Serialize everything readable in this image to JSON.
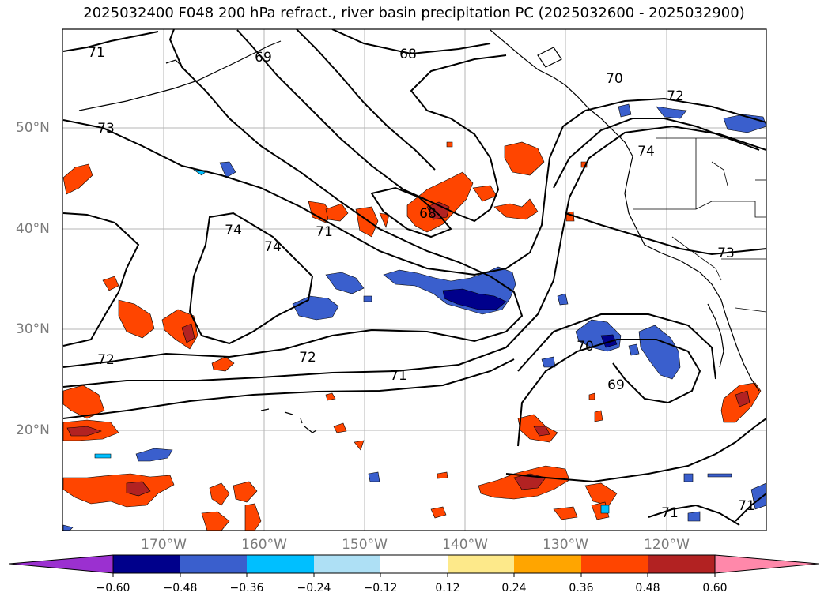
{
  "title": "2025032400 F048 200 hPa refract., river basin precipitation PC (2025032600 - 2025032900)",
  "lat_labels": [
    "50°N",
    "40°N",
    "30°N",
    "20°N"
  ],
  "lon_labels": [
    "170°W",
    "160°W",
    "150°W",
    "140°W",
    "130°W",
    "120°W"
  ],
  "contour_labels": [
    "71",
    "69",
    "68",
    "70",
    "72",
    "73",
    "74",
    "74",
    "71",
    "68",
    "74",
    "73",
    "72",
    "72",
    "71",
    "70",
    "69",
    "71",
    "71"
  ],
  "colorbar": {
    "ticks": [
      "−0.60",
      "−0.48",
      "−0.36",
      "−0.24",
      "−0.12",
      "0.12",
      "0.24",
      "0.36",
      "0.48",
      "0.60"
    ],
    "colors": [
      "#9b30d0",
      "#00008b",
      "#3a5fcd",
      "#00bfff",
      "#aee0f5",
      "#ffffff",
      "#fde98a",
      "#ffa500",
      "#ff4500",
      "#b22222",
      "#ff88aa"
    ]
  },
  "colors": {
    "positive_strong": "#b22222",
    "positive_mid": "#ff4500",
    "positive_weak": "#ffa500",
    "positive_faint": "#fde98a",
    "negative_strong": "#00008b",
    "negative_mid": "#3a5fcd",
    "negative_weak": "#00bfff",
    "negative_faint": "#aee0f5"
  }
}
